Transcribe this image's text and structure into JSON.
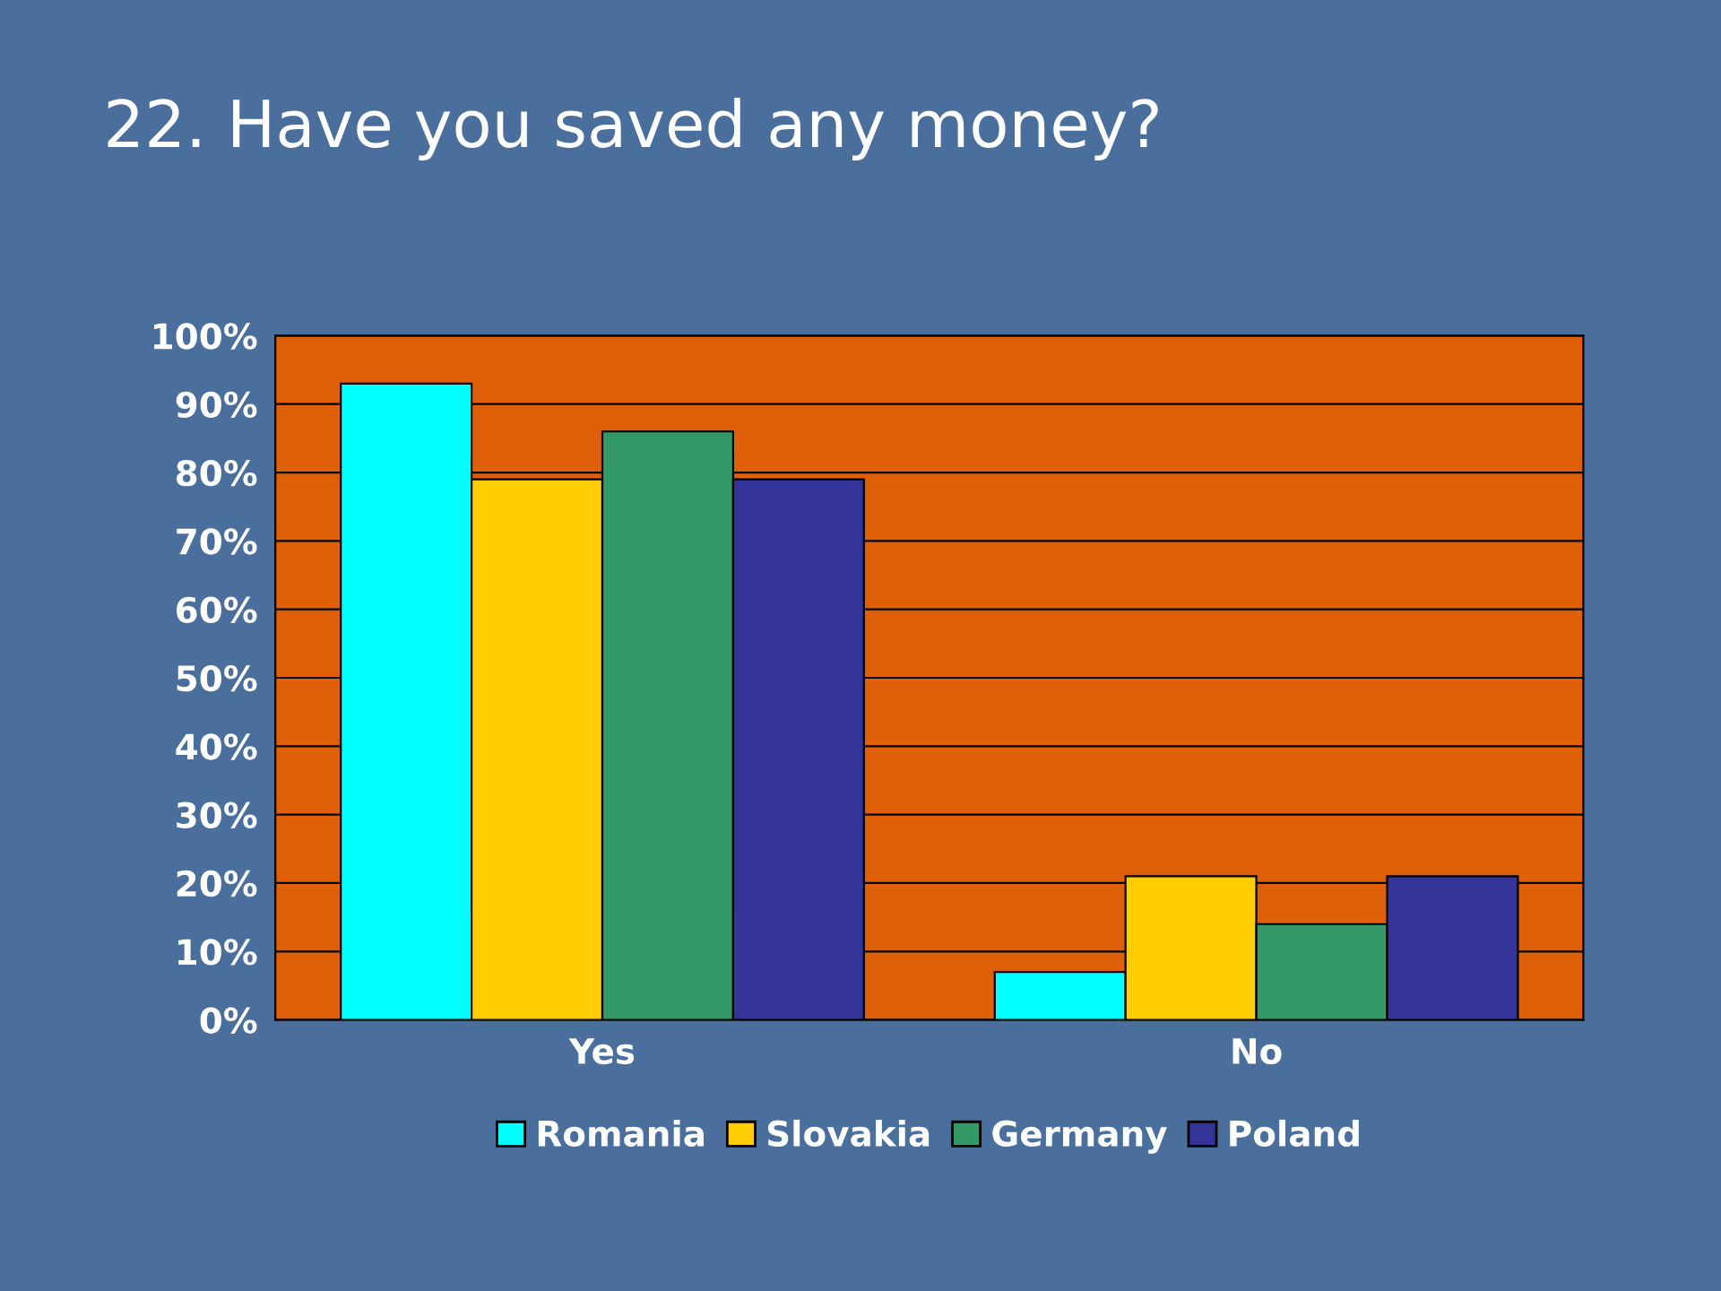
{
  "chart_data": {
    "type": "bar",
    "title": "22. Have you saved any money?",
    "categories": [
      "Yes",
      "No"
    ],
    "series": [
      {
        "name": "Romania",
        "color": "#00ffff",
        "values": [
          93,
          7
        ]
      },
      {
        "name": "Slovakia",
        "color": "#ffcc00",
        "values": [
          79,
          21
        ]
      },
      {
        "name": "Germany",
        "color": "#339966",
        "values": [
          86,
          14
        ]
      },
      {
        "name": "Poland",
        "color": "#333399",
        "values": [
          79,
          21
        ]
      }
    ],
    "ylim": [
      0,
      100
    ],
    "yticks": [
      {
        "value": 0,
        "label": "0%"
      },
      {
        "value": 10,
        "label": "10%"
      },
      {
        "value": 20,
        "label": "20%"
      },
      {
        "value": 30,
        "label": "30%"
      },
      {
        "value": 40,
        "label": "40%"
      },
      {
        "value": 50,
        "label": "50%"
      },
      {
        "value": 60,
        "label": "60%"
      },
      {
        "value": 70,
        "label": "70%"
      },
      {
        "value": 80,
        "label": "80%"
      },
      {
        "value": 90,
        "label": "90%"
      },
      {
        "value": 100,
        "label": "100%"
      }
    ],
    "grid": "y",
    "legend": "bottom"
  }
}
